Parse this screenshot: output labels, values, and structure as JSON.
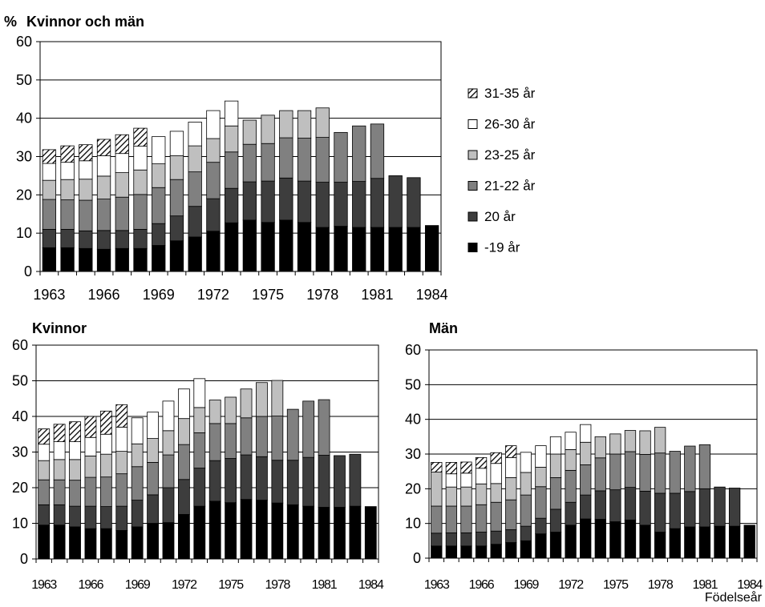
{
  "colors": {
    "-19 år": "#000000",
    "20 år": "#3d3d3d",
    "21-22 år": "#808080",
    "23-25 år": "#bfbfbf",
    "26-30 år": "#ffffff",
    "31-35 år": "hatch"
  },
  "legend": [
    "31-35 år",
    "26-30 år",
    "23-25 år",
    "21-22 år",
    "20 år",
    "-19 år"
  ],
  "y_unit": "%",
  "x_axis_note": "Födelseår",
  "chart_data": [
    {
      "id": "top",
      "type": "bar",
      "stacked": true,
      "title": "Kvinnor och män",
      "ylim": [
        0,
        60
      ],
      "yticks": [
        0,
        10,
        20,
        30,
        40,
        50,
        60
      ],
      "xticks": [
        "1963",
        "1966",
        "1969",
        "1972",
        "1975",
        "1978",
        "1981",
        "1984"
      ],
      "grid": true,
      "categories": [
        "1963",
        "1964",
        "1965",
        "1966",
        "1967",
        "1968",
        "1969",
        "1970",
        "1971",
        "1972",
        "1973",
        "1974",
        "1975",
        "1976",
        "1977",
        "1978",
        "1979",
        "1980",
        "1981",
        "1982",
        "1983",
        "1984"
      ],
      "series": [
        {
          "name": "-19 år",
          "values": [
            6.2,
            6.2,
            6.0,
            5.8,
            6.0,
            6.0,
            6.8,
            8.0,
            9.0,
            10.5,
            12.7,
            13.4,
            12.8,
            13.4,
            12.8,
            11.5,
            11.8,
            11.5,
            11.5,
            11.5,
            11.5,
            12.0
          ]
        },
        {
          "name": "20 år",
          "values": [
            4.8,
            4.8,
            4.6,
            4.9,
            4.7,
            5.0,
            5.7,
            6.5,
            8.0,
            8.5,
            9.0,
            10.0,
            10.8,
            11.0,
            10.8,
            11.8,
            11.5,
            12.0,
            12.8,
            13.5,
            13.0,
            0
          ]
        },
        {
          "name": "21-22 år",
          "values": [
            7.8,
            7.7,
            8.0,
            8.2,
            8.7,
            9.1,
            9.4,
            9.5,
            9.0,
            9.5,
            9.5,
            9.8,
            9.8,
            10.5,
            11.2,
            11.7,
            13.0,
            14.5,
            14.2,
            0,
            0,
            0
          ]
        },
        {
          "name": "23-25 år",
          "values": [
            5.0,
            5.3,
            5.5,
            6.0,
            6.4,
            6.4,
            6.2,
            6.2,
            6.8,
            6.2,
            6.8,
            6.3,
            7.4,
            7.1,
            7.2,
            7.7,
            0,
            0,
            0,
            0,
            0,
            0
          ]
        },
        {
          "name": "26-30 år",
          "values": [
            4.4,
            4.5,
            4.8,
            5.3,
            5.0,
            6.2,
            7.1,
            6.4,
            6.2,
            7.3,
            6.5,
            0,
            0,
            0,
            0,
            0,
            0,
            0,
            0,
            0,
            0,
            0
          ]
        },
        {
          "name": "31-35 år",
          "values": [
            3.6,
            4.3,
            4.2,
            4.3,
            4.9,
            4.7,
            0,
            0,
            0,
            0,
            0,
            0,
            0,
            0,
            0,
            0,
            0,
            0,
            0,
            0,
            0,
            0
          ]
        }
      ]
    },
    {
      "id": "women",
      "type": "bar",
      "stacked": true,
      "title": "Kvinnor",
      "ylim": [
        0,
        60
      ],
      "yticks": [
        0,
        10,
        20,
        30,
        40,
        50,
        60
      ],
      "xticks": [
        "1963",
        "1966",
        "1969",
        "1972",
        "1975",
        "1978",
        "1981",
        "1984"
      ],
      "grid": true,
      "categories": [
        "1963",
        "1964",
        "1965",
        "1966",
        "1967",
        "1968",
        "1969",
        "1970",
        "1971",
        "1972",
        "1973",
        "1974",
        "1975",
        "1976",
        "1977",
        "1978",
        "1979",
        "1980",
        "1981",
        "1982",
        "1983",
        "1984"
      ],
      "series": [
        {
          "name": "-19 år",
          "values": [
            9.5,
            9.5,
            9.0,
            8.5,
            8.5,
            8.0,
            9.0,
            10.0,
            10.2,
            12.5,
            14.8,
            16.2,
            15.8,
            16.7,
            16.5,
            15.7,
            15.2,
            14.8,
            14.5,
            14.5,
            14.8,
            14.7
          ]
        },
        {
          "name": "20 år",
          "values": [
            5.7,
            5.7,
            5.8,
            6.3,
            6.2,
            6.8,
            7.5,
            8.0,
            9.8,
            9.8,
            10.7,
            11.4,
            12.4,
            12.5,
            12.2,
            12.0,
            12.5,
            13.7,
            14.6,
            14.5,
            14.6,
            0
          ]
        },
        {
          "name": "21-22 år",
          "values": [
            7.0,
            7.0,
            7.3,
            8.1,
            8.3,
            9.1,
            9.4,
            9.1,
            9.2,
            9.8,
            9.9,
            10.4,
            9.8,
            10.4,
            11.3,
            12.4,
            14.3,
            15.8,
            15.6,
            0,
            0,
            0
          ]
        },
        {
          "name": "23-25 år",
          "values": [
            5.4,
            5.7,
            5.8,
            6.0,
            6.4,
            6.3,
            6.4,
            6.7,
            6.8,
            7.3,
            7.1,
            6.6,
            7.4,
            8.1,
            9.5,
            10.0,
            0,
            0,
            0,
            0,
            0,
            0
          ]
        },
        {
          "name": "26-30 år",
          "values": [
            4.6,
            5.0,
            5.0,
            5.2,
            5.6,
            6.8,
            7.3,
            7.4,
            8.3,
            8.3,
            8.1,
            0,
            0,
            0,
            0,
            0,
            0,
            0,
            0,
            0,
            0,
            0
          ]
        },
        {
          "name": "31-35 år",
          "values": [
            4.3,
            4.9,
            5.6,
            5.9,
            6.5,
            6.3,
            0,
            0,
            0,
            0,
            0,
            0,
            0,
            0,
            0,
            0,
            0,
            0,
            0,
            0,
            0,
            0
          ]
        }
      ]
    },
    {
      "id": "men",
      "type": "bar",
      "stacked": true,
      "title": "Män",
      "ylim": [
        0,
        60
      ],
      "yticks": [
        0,
        10,
        20,
        30,
        40,
        50,
        60
      ],
      "xticks": [
        "1963",
        "1966",
        "1969",
        "1972",
        "1975",
        "1978",
        "1981",
        "1984"
      ],
      "grid": true,
      "categories": [
        "1963",
        "1964",
        "1965",
        "1966",
        "1967",
        "1968",
        "1969",
        "1970",
        "1971",
        "1972",
        "1973",
        "1974",
        "1975",
        "1976",
        "1977",
        "1978",
        "1979",
        "1980",
        "1981",
        "1982",
        "1983",
        "1984"
      ],
      "series": [
        {
          "name": "-19 år",
          "values": [
            3.5,
            3.5,
            3.5,
            3.5,
            4.0,
            4.5,
            5.0,
            7.0,
            7.5,
            9.5,
            11.3,
            11.2,
            10.5,
            11.0,
            9.5,
            7.5,
            8.5,
            9.0,
            9.0,
            9.2,
            9.2,
            9.5
          ]
        },
        {
          "name": "20 år",
          "values": [
            3.7,
            3.8,
            3.8,
            4.0,
            3.8,
            3.7,
            4.2,
            4.5,
            6.6,
            6.6,
            6.9,
            8.2,
            9.2,
            9.4,
            9.8,
            11.2,
            10.2,
            10.2,
            11.0,
            11.3,
            11.0,
            0
          ]
        },
        {
          "name": "21-22 år",
          "values": [
            7.8,
            7.7,
            7.7,
            7.9,
            8.3,
            8.6,
            9.0,
            9.1,
            9.1,
            9.2,
            8.7,
            9.5,
            10.3,
            10.3,
            10.6,
            11.6,
            12.1,
            13.1,
            12.7,
            0,
            0,
            0
          ]
        },
        {
          "name": "23-25 år",
          "values": [
            9.8,
            5.5,
            5.5,
            6.0,
            5.4,
            6.4,
            6.5,
            5.6,
            6.8,
            6.0,
            6.5,
            6.1,
            5.8,
            6.1,
            6.8,
            7.4,
            0,
            0,
            0,
            0,
            0,
            0
          ]
        },
        {
          "name": "26-30 år",
          "values": [
            0,
            3.8,
            4.0,
            4.5,
            5.8,
            5.8,
            5.8,
            6.2,
            5.0,
            5.0,
            5.1,
            0,
            0,
            0,
            0,
            0,
            0,
            0,
            0,
            0,
            0,
            0
          ]
        },
        {
          "name": "31-35 år",
          "values": [
            2.8,
            3.3,
            3.2,
            3.1,
            3.1,
            3.4,
            0,
            0,
            0,
            0,
            0,
            0,
            0,
            0,
            0,
            0,
            0,
            0,
            0,
            0,
            0,
            0
          ]
        }
      ]
    }
  ]
}
